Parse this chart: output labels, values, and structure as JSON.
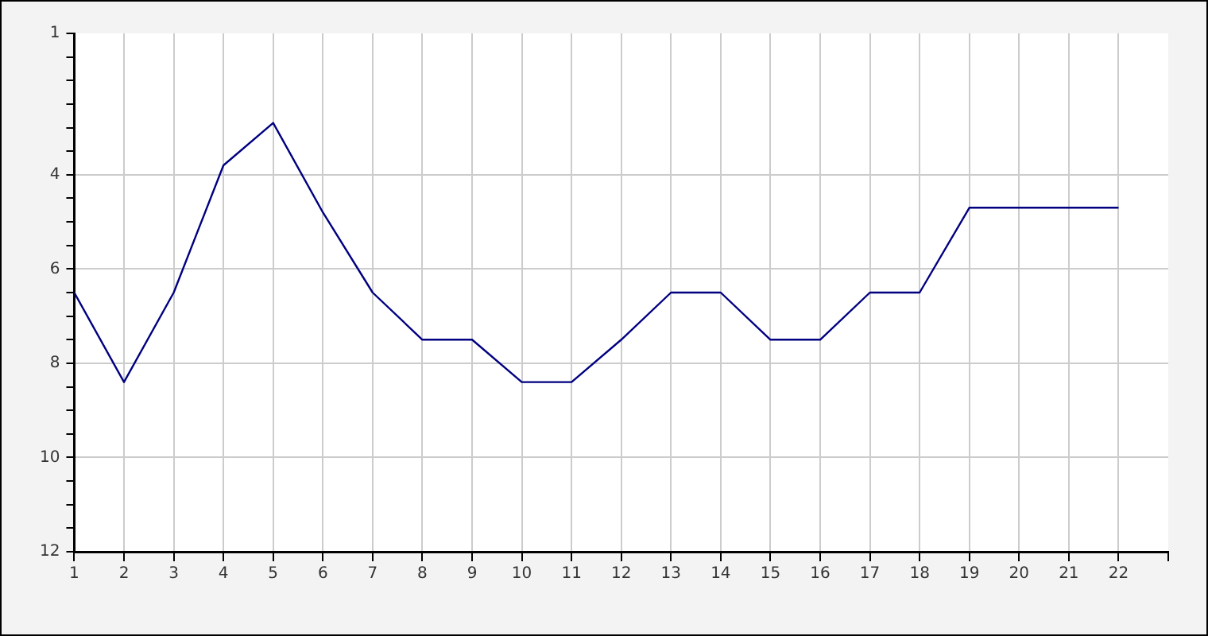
{
  "chart_data": {
    "type": "line",
    "x": [
      1,
      2,
      3,
      4,
      5,
      6,
      7,
      8,
      9,
      10,
      11,
      12,
      13,
      14,
      15,
      16,
      17,
      18,
      19,
      20,
      21,
      22
    ],
    "series": [
      {
        "color": "#000080",
        "values": [
          6.5,
          8.4,
          6.5,
          3.8,
          2.9,
          4.8,
          6.5,
          7.5,
          7.5,
          8.4,
          8.4,
          7.5,
          6.5,
          6.5,
          7.5,
          7.5,
          6.5,
          6.5,
          4.7,
          4.7,
          4.7,
          4.7
        ]
      }
    ],
    "xlim": [
      1,
      23
    ],
    "xticks": [
      1,
      2,
      3,
      4,
      5,
      6,
      7,
      8,
      9,
      10,
      11,
      12,
      13,
      14,
      15,
      16,
      17,
      18,
      19,
      20,
      21,
      22,
      {
        "value": 23,
        "label": null
      }
    ],
    "ylim": [
      12,
      1
    ],
    "yticks": [
      1,
      {
        "value": 1.5,
        "label": null
      },
      {
        "value": 2,
        "label": null
      },
      {
        "value": 2.5,
        "label": null
      },
      {
        "value": 3,
        "label": null
      },
      {
        "value": 3.5,
        "label": null
      },
      4,
      {
        "value": 4.5,
        "label": null
      },
      {
        "value": 5,
        "label": null
      },
      {
        "value": 5.5,
        "label": null
      },
      6,
      {
        "value": 6.5,
        "label": null
      },
      {
        "value": 7,
        "label": null
      },
      {
        "value": 7.5,
        "label": null
      },
      8,
      {
        "value": 8.5,
        "label": null
      },
      {
        "value": 9,
        "label": null
      },
      {
        "value": 9.5,
        "label": null
      },
      10,
      {
        "value": 10.5,
        "label": null
      },
      {
        "value": 11,
        "label": null
      },
      {
        "value": 11.5,
        "label": null
      },
      12
    ],
    "grid": true,
    "marker": "none",
    "line_style": "solid"
  }
}
